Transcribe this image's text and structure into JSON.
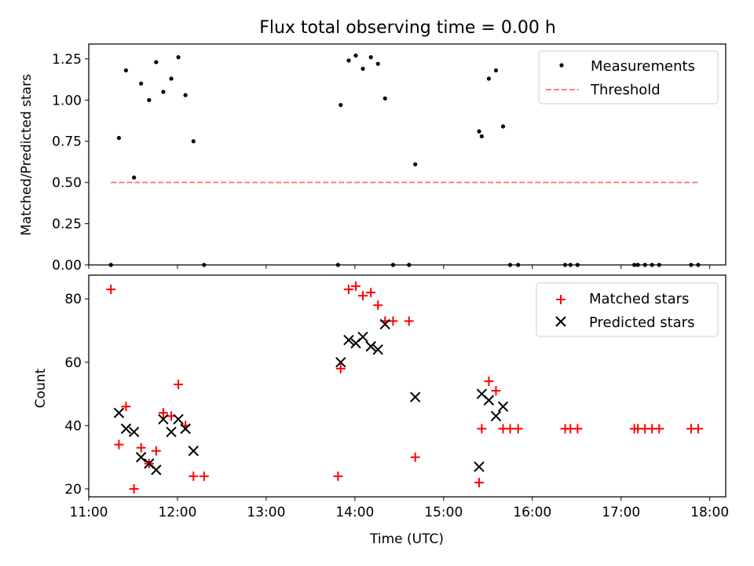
{
  "chart_data": [
    {
      "type": "scatter",
      "title": "Flux total observing time = 0.00 h",
      "xlabel": "",
      "ylabel": "Matched/Predicted stars",
      "xlim": [
        11.0,
        18.18
      ],
      "ylim": [
        0.0,
        1.34
      ],
      "x_ticks": [
        11,
        12,
        13,
        14,
        15,
        16,
        17,
        18
      ],
      "y_ticks": [
        0.0,
        0.25,
        0.5,
        0.75,
        1.0,
        1.25
      ],
      "y_tick_labels": [
        "0.00",
        "0.25",
        "0.50",
        "0.75",
        "1.00",
        "1.25"
      ],
      "legend_position": "top-right",
      "series": [
        {
          "name": "Measurements",
          "color": "#000000",
          "marker": "dot",
          "points": [
            [
              11.25,
              0.0
            ],
            [
              11.34,
              0.77
            ],
            [
              11.42,
              1.18
            ],
            [
              11.51,
              0.53
            ],
            [
              11.59,
              1.1
            ],
            [
              11.68,
              1.0
            ],
            [
              11.76,
              1.23
            ],
            [
              11.84,
              1.05
            ],
            [
              11.93,
              1.13
            ],
            [
              12.01,
              1.26
            ],
            [
              12.09,
              1.03
            ],
            [
              12.18,
              0.75
            ],
            [
              12.3,
              0.0
            ],
            [
              13.81,
              0.0
            ],
            [
              13.84,
              0.97
            ],
            [
              13.93,
              1.24
            ],
            [
              14.01,
              1.27
            ],
            [
              14.09,
              1.19
            ],
            [
              14.18,
              1.26
            ],
            [
              14.26,
              1.22
            ],
            [
              14.34,
              1.01
            ],
            [
              14.43,
              0.0
            ],
            [
              14.61,
              0.0
            ],
            [
              14.68,
              0.61
            ],
            [
              15.4,
              0.81
            ],
            [
              15.43,
              0.78
            ],
            [
              15.51,
              1.13
            ],
            [
              15.59,
              1.18
            ],
            [
              15.67,
              0.84
            ],
            [
              15.75,
              0.0
            ],
            [
              15.84,
              0.0
            ],
            [
              16.37,
              0.0
            ],
            [
              16.43,
              0.0
            ],
            [
              16.51,
              0.0
            ],
            [
              17.15,
              0.0
            ],
            [
              17.19,
              0.0
            ],
            [
              17.27,
              0.0
            ],
            [
              17.35,
              0.0
            ],
            [
              17.43,
              0.0
            ],
            [
              17.79,
              0.0
            ],
            [
              17.87,
              0.0
            ]
          ]
        },
        {
          "name": "Threshold",
          "color": "#ff7f7f",
          "style": "dashed-line",
          "points": [
            [
              11.25,
              0.5
            ],
            [
              17.87,
              0.5
            ]
          ]
        }
      ]
    },
    {
      "type": "scatter",
      "title": "",
      "xlabel": "Time (UTC)",
      "ylabel": "Count",
      "xlim": [
        11.0,
        18.18
      ],
      "ylim": [
        17.5,
        87.5
      ],
      "x_ticks": [
        11,
        12,
        13,
        14,
        15,
        16,
        17,
        18
      ],
      "x_tick_labels": [
        "11:00",
        "12:00",
        "13:00",
        "14:00",
        "15:00",
        "16:00",
        "17:00",
        "18:00"
      ],
      "y_ticks": [
        20,
        40,
        60,
        80
      ],
      "y_tick_labels": [
        "20",
        "40",
        "60",
        "80"
      ],
      "legend_position": "top-right",
      "series": [
        {
          "name": "Matched stars",
          "color": "#ff0000",
          "marker": "plus",
          "points": [
            [
              11.25,
              83
            ],
            [
              11.34,
              34
            ],
            [
              11.42,
              46
            ],
            [
              11.51,
              20
            ],
            [
              11.59,
              33
            ],
            [
              11.68,
              28
            ],
            [
              11.76,
              32
            ],
            [
              11.84,
              44
            ],
            [
              11.93,
              43
            ],
            [
              12.01,
              53
            ],
            [
              12.09,
              40
            ],
            [
              12.18,
              24
            ],
            [
              12.3,
              24
            ],
            [
              13.81,
              24
            ],
            [
              13.84,
              58
            ],
            [
              13.93,
              83
            ],
            [
              14.01,
              84
            ],
            [
              14.09,
              81
            ],
            [
              14.18,
              82
            ],
            [
              14.26,
              78
            ],
            [
              14.34,
              73
            ],
            [
              14.43,
              73
            ],
            [
              14.61,
              73
            ],
            [
              14.68,
              30
            ],
            [
              15.4,
              22
            ],
            [
              15.43,
              39
            ],
            [
              15.51,
              54
            ],
            [
              15.59,
              51
            ],
            [
              15.67,
              39
            ],
            [
              15.75,
              39
            ],
            [
              15.84,
              39
            ],
            [
              16.37,
              39
            ],
            [
              16.43,
              39
            ],
            [
              16.51,
              39
            ],
            [
              17.15,
              39
            ],
            [
              17.19,
              39
            ],
            [
              17.27,
              39
            ],
            [
              17.35,
              39
            ],
            [
              17.43,
              39
            ],
            [
              17.79,
              39
            ],
            [
              17.87,
              39
            ]
          ]
        },
        {
          "name": "Predicted stars",
          "color": "#000000",
          "marker": "x",
          "points": [
            [
              11.34,
              44
            ],
            [
              11.42,
              39
            ],
            [
              11.51,
              38
            ],
            [
              11.59,
              30
            ],
            [
              11.68,
              28
            ],
            [
              11.76,
              26
            ],
            [
              11.84,
              42
            ],
            [
              11.93,
              38
            ],
            [
              12.01,
              42
            ],
            [
              12.09,
              39
            ],
            [
              12.18,
              32
            ],
            [
              13.84,
              60
            ],
            [
              13.93,
              67
            ],
            [
              14.01,
              66
            ],
            [
              14.09,
              68
            ],
            [
              14.18,
              65
            ],
            [
              14.26,
              64
            ],
            [
              14.34,
              72
            ],
            [
              14.68,
              49
            ],
            [
              15.4,
              27
            ],
            [
              15.43,
              50
            ],
            [
              15.51,
              48
            ],
            [
              15.59,
              43
            ],
            [
              15.67,
              46
            ]
          ]
        }
      ]
    }
  ]
}
